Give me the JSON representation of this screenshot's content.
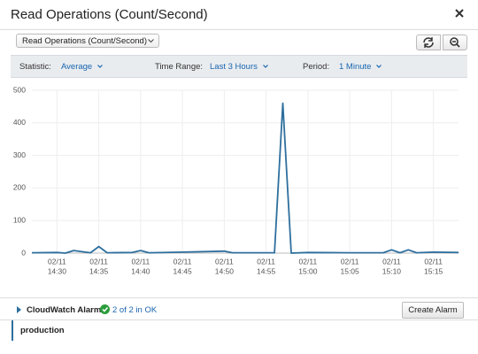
{
  "header": {
    "title": "Read Operations (Count/Second)"
  },
  "toolbar": {
    "metric_select": "Read Operations (Count/Second)"
  },
  "controls": [
    {
      "label": "Statistic:",
      "value": "Average"
    },
    {
      "label": "Time Range:",
      "value": "Last 3 Hours"
    },
    {
      "label": "Period:",
      "value": "1 Minute"
    }
  ],
  "chart_data": {
    "type": "line",
    "x": [
      "14:27",
      "14:30",
      "14:31",
      "14:32",
      "14:34",
      "14:35",
      "14:36",
      "14:39",
      "14:40",
      "14:41",
      "14:45",
      "14:50",
      "14:51",
      "14:56",
      "14:57",
      "14:58",
      "15:00",
      "15:05",
      "15:09",
      "15:10",
      "15:11",
      "15:12",
      "15:13",
      "15:15",
      "15:18"
    ],
    "values": [
      1,
      2,
      0,
      8,
      1,
      20,
      1,
      2,
      8,
      1,
      3,
      6,
      1,
      1,
      460,
      0,
      2,
      1,
      1,
      10,
      1,
      10,
      1,
      3,
      2
    ],
    "color": "#2e6f9e",
    "xlim": [
      "14:27",
      "15:18"
    ],
    "xticks": [
      {
        "date": "02/11",
        "time": "14:30"
      },
      {
        "date": "02/11",
        "time": "14:35"
      },
      {
        "date": "02/11",
        "time": "14:40"
      },
      {
        "date": "02/11",
        "time": "14:45"
      },
      {
        "date": "02/11",
        "time": "14:50"
      },
      {
        "date": "02/11",
        "time": "14:55"
      },
      {
        "date": "02/11",
        "time": "15:00"
      },
      {
        "date": "02/11",
        "time": "15:05"
      },
      {
        "date": "02/11",
        "time": "15:10"
      },
      {
        "date": "02/11",
        "time": "15:15"
      }
    ],
    "ylim": [
      0,
      500
    ],
    "yticks": [
      0,
      100,
      200,
      300,
      400,
      500
    ],
    "grid": true
  },
  "alarms": {
    "label": "CloudWatch Alarms:",
    "status": "2 of 2 in OK",
    "button": "Create Alarm",
    "items": [
      "production"
    ]
  }
}
